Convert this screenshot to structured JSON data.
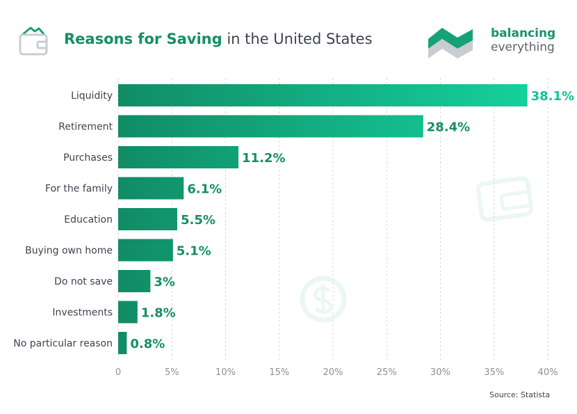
{
  "title": {
    "strong": "Reasons for Saving",
    "rest": " in the United States"
  },
  "brand": {
    "line1": "balancing",
    "line2": "everything"
  },
  "source": "Source: Statista",
  "colors": {
    "bar_dark": "#0c8a62",
    "bar_light": "#10cf9b",
    "label": "#158f64",
    "axis_text": "#8a8f99",
    "grid": "#d4d7dc"
  },
  "icons": {
    "header": "wallet-icon",
    "brand": "balancing-everything-logo-icon",
    "background": [
      "wallet-watermark-icon",
      "coin-watermark-icon"
    ]
  },
  "chart_data": {
    "type": "bar",
    "orientation": "horizontal",
    "categories": [
      "Liquidity",
      "Retirement",
      "Purchases",
      "For the family",
      "Education",
      "Buying own home",
      "Do not save",
      "Investments",
      "No particular reason"
    ],
    "values": [
      38.1,
      28.4,
      11.2,
      6.1,
      5.5,
      5.1,
      3,
      1.8,
      0.8
    ],
    "value_labels": [
      "38.1%",
      "28.4%",
      "11.2%",
      "6.1%",
      "5.5%",
      "5.1%",
      "3%",
      "1.8%",
      "0.8%"
    ],
    "xlim": [
      0,
      40
    ],
    "xticks": [
      0,
      5,
      10,
      15,
      20,
      25,
      30,
      35,
      40
    ],
    "xtick_labels": [
      "0",
      "5%",
      "10%",
      "15%",
      "20%",
      "25%",
      "30%",
      "35%",
      "40%"
    ],
    "grid": true,
    "legend": "none"
  }
}
